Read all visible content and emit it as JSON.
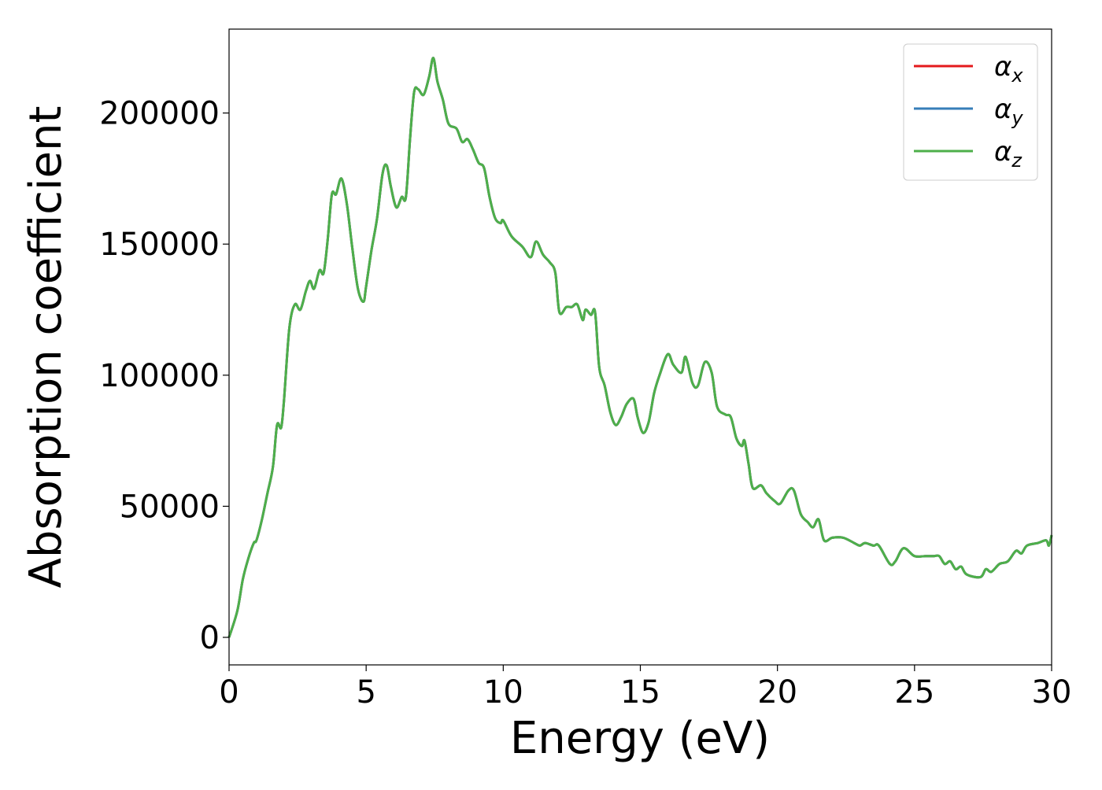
{
  "chart_data": {
    "type": "line",
    "title": "",
    "xlabel": "Energy (eV)",
    "ylabel": "Absorption coefficient",
    "xlim": [
      0,
      30
    ],
    "ylim": [
      -10500,
      232000
    ],
    "xticks": [
      0,
      5,
      10,
      15,
      20,
      25,
      30
    ],
    "xtick_labels": [
      "0",
      "5",
      "10",
      "15",
      "20",
      "25",
      "30"
    ],
    "yticks": [
      0,
      50000,
      100000,
      150000,
      200000
    ],
    "ytick_labels": [
      "0",
      "50000",
      "100000",
      "150000",
      "200000"
    ],
    "grid": false,
    "legend_position": "top-right",
    "x": [
      0,
      0.3,
      0.5,
      0.7,
      0.9,
      1.0,
      1.2,
      1.4,
      1.6,
      1.75,
      1.9,
      2.0,
      2.2,
      2.4,
      2.6,
      2.8,
      2.95,
      3.1,
      3.3,
      3.45,
      3.6,
      3.75,
      3.9,
      4.1,
      4.3,
      4.5,
      4.7,
      4.9,
      5.0,
      5.2,
      5.4,
      5.6,
      5.75,
      5.9,
      6.1,
      6.3,
      6.45,
      6.6,
      6.75,
      6.9,
      7.1,
      7.3,
      7.45,
      7.6,
      7.8,
      8.0,
      8.3,
      8.5,
      8.7,
      8.9,
      9.1,
      9.3,
      9.5,
      9.7,
      9.9,
      10.0,
      10.3,
      10.7,
      11.0,
      11.2,
      11.45,
      11.7,
      11.9,
      12.05,
      12.3,
      12.5,
      12.7,
      12.9,
      13.0,
      13.2,
      13.35,
      13.5,
      13.7,
      13.9,
      14.1,
      14.3,
      14.5,
      14.75,
      14.9,
      15.1,
      15.3,
      15.5,
      15.7,
      16.0,
      16.2,
      16.5,
      16.65,
      16.9,
      17.1,
      17.35,
      17.6,
      17.8,
      18.1,
      18.3,
      18.5,
      18.7,
      18.8,
      18.95,
      19.1,
      19.4,
      19.6,
      19.9,
      20.1,
      20.4,
      20.6,
      20.85,
      21.1,
      21.3,
      21.5,
      21.7,
      22.0,
      22.4,
      22.8,
      23.0,
      23.2,
      23.5,
      23.7,
      24.1,
      24.3,
      24.6,
      25.0,
      25.4,
      25.7,
      25.9,
      26.1,
      26.3,
      26.5,
      26.7,
      26.9,
      27.4,
      27.6,
      27.8,
      28.1,
      28.4,
      28.7,
      28.9,
      29.1,
      29.5,
      29.8,
      29.9,
      30.0
    ],
    "series": [
      {
        "name": "αx",
        "label_base": "α",
        "label_sub": "x",
        "color": "#e41a1c",
        "values": [
          0,
          10000,
          22000,
          30000,
          36000,
          37000,
          45000,
          55000,
          65000,
          81000,
          80000,
          90000,
          118000,
          127000,
          125000,
          132000,
          136000,
          133000,
          140000,
          139000,
          152000,
          169000,
          169000,
          175000,
          165000,
          148000,
          133000,
          128000,
          134000,
          148000,
          160000,
          177000,
          180000,
          172000,
          164000,
          168000,
          168000,
          190000,
          208000,
          209000,
          207000,
          214000,
          221000,
          212000,
          205000,
          196000,
          194000,
          189000,
          190000,
          186000,
          181000,
          179000,
          168000,
          160000,
          158000,
          159000,
          153000,
          149000,
          145000,
          151000,
          146000,
          143000,
          139000,
          124000,
          126000,
          126000,
          127000,
          121000,
          125000,
          123000,
          124000,
          103000,
          96000,
          86000,
          81000,
          84000,
          89000,
          91000,
          84000,
          78000,
          82000,
          93000,
          100000,
          108000,
          104000,
          101000,
          107000,
          97000,
          96000,
          105000,
          101000,
          88000,
          85000,
          84000,
          76000,
          73000,
          75000,
          66000,
          57000,
          58000,
          55000,
          52000,
          51000,
          56000,
          56000,
          47000,
          44000,
          42000,
          45000,
          37000,
          38000,
          38000,
          36000,
          35000,
          36000,
          35000,
          35000,
          28000,
          29000,
          34000,
          31000,
          31000,
          31000,
          31000,
          28000,
          29000,
          26000,
          27000,
          24000,
          23000,
          26000,
          25000,
          28000,
          29000,
          33000,
          32000,
          35000,
          36000,
          37000,
          35000,
          39000
        ]
      },
      {
        "name": "αy",
        "label_base": "α",
        "label_sub": "y",
        "color": "#377eb8",
        "values": [
          0,
          10000,
          22000,
          30000,
          36000,
          37000,
          45000,
          55000,
          65000,
          81000,
          80000,
          90000,
          118000,
          127000,
          125000,
          132000,
          136000,
          133000,
          140000,
          139000,
          152000,
          169000,
          169000,
          175000,
          165000,
          148000,
          133000,
          128000,
          134000,
          148000,
          160000,
          177000,
          180000,
          172000,
          164000,
          168000,
          168000,
          190000,
          208000,
          209000,
          207000,
          214000,
          221000,
          212000,
          205000,
          196000,
          194000,
          189000,
          190000,
          186000,
          181000,
          179000,
          168000,
          160000,
          158000,
          159000,
          153000,
          149000,
          145000,
          151000,
          146000,
          143000,
          139000,
          124000,
          126000,
          126000,
          127000,
          121000,
          125000,
          123000,
          124000,
          103000,
          96000,
          86000,
          81000,
          84000,
          89000,
          91000,
          84000,
          78000,
          82000,
          93000,
          100000,
          108000,
          104000,
          101000,
          107000,
          97000,
          96000,
          105000,
          101000,
          88000,
          85000,
          84000,
          76000,
          73000,
          75000,
          66000,
          57000,
          58000,
          55000,
          52000,
          51000,
          56000,
          56000,
          47000,
          44000,
          42000,
          45000,
          37000,
          38000,
          38000,
          36000,
          35000,
          36000,
          35000,
          35000,
          28000,
          29000,
          34000,
          31000,
          31000,
          31000,
          31000,
          28000,
          29000,
          26000,
          27000,
          24000,
          23000,
          26000,
          25000,
          28000,
          29000,
          33000,
          32000,
          35000,
          36000,
          37000,
          35000,
          39000
        ]
      },
      {
        "name": "αz",
        "label_base": "α",
        "label_sub": "z",
        "color": "#4daf4a",
        "values": [
          0,
          10000,
          22000,
          30000,
          36000,
          37000,
          45000,
          55000,
          65000,
          81000,
          80000,
          90000,
          118000,
          127000,
          125000,
          132000,
          136000,
          133000,
          140000,
          139000,
          152000,
          169000,
          169000,
          175000,
          165000,
          148000,
          133000,
          128000,
          134000,
          148000,
          160000,
          177000,
          180000,
          172000,
          164000,
          168000,
          168000,
          190000,
          208000,
          209000,
          207000,
          214000,
          221000,
          212000,
          205000,
          196000,
          194000,
          189000,
          190000,
          186000,
          181000,
          179000,
          168000,
          160000,
          158000,
          159000,
          153000,
          149000,
          145000,
          151000,
          146000,
          143000,
          139000,
          124000,
          126000,
          126000,
          127000,
          121000,
          125000,
          123000,
          124000,
          103000,
          96000,
          86000,
          81000,
          84000,
          89000,
          91000,
          84000,
          78000,
          82000,
          93000,
          100000,
          108000,
          104000,
          101000,
          107000,
          97000,
          96000,
          105000,
          101000,
          88000,
          85000,
          84000,
          76000,
          73000,
          75000,
          66000,
          57000,
          58000,
          55000,
          52000,
          51000,
          56000,
          56000,
          47000,
          44000,
          42000,
          45000,
          37000,
          38000,
          38000,
          36000,
          35000,
          36000,
          35000,
          35000,
          28000,
          29000,
          34000,
          31000,
          31000,
          31000,
          31000,
          28000,
          29000,
          26000,
          27000,
          24000,
          23000,
          26000,
          25000,
          28000,
          29000,
          33000,
          32000,
          35000,
          36000,
          37000,
          35000,
          39000
        ]
      }
    ]
  }
}
